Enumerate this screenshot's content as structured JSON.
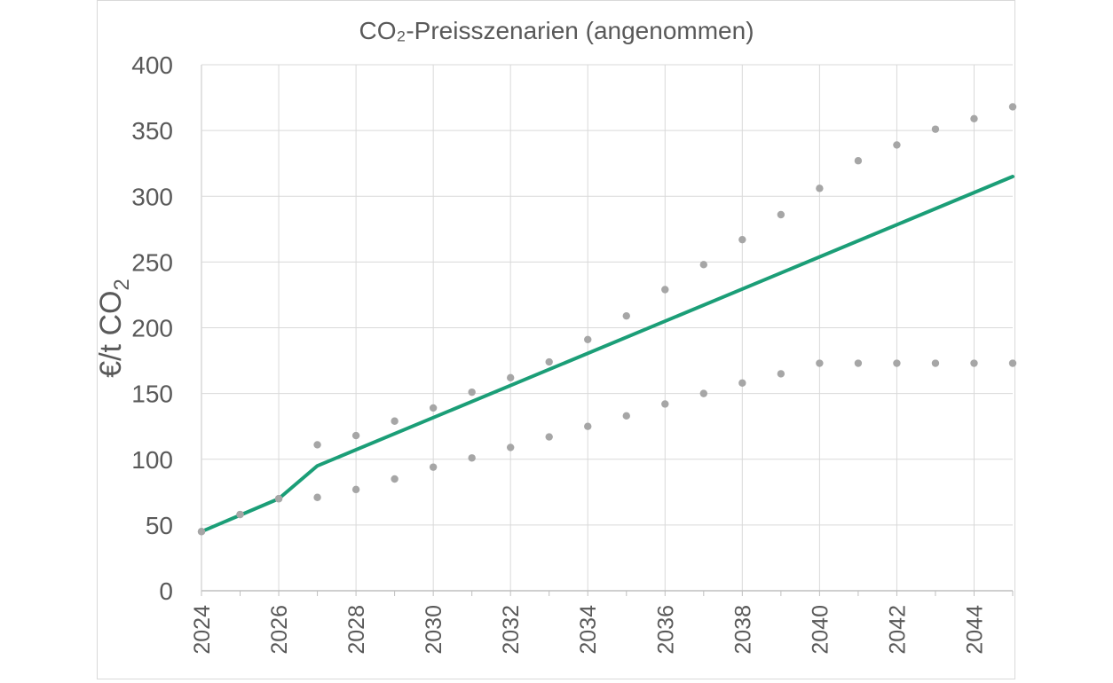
{
  "chart_data": {
    "type": "line",
    "title": "CO₂-Preisszenarien (angenommen)",
    "ylabel_main": "€/t CO",
    "ylabel_sub": "2",
    "xlabel": "",
    "ylim": [
      0,
      400
    ],
    "xlim": [
      2024,
      2045
    ],
    "y_ticks": [
      0,
      50,
      100,
      150,
      200,
      250,
      300,
      350,
      400
    ],
    "x_ticks": [
      2024,
      2026,
      2028,
      2030,
      2032,
      2034,
      2036,
      2038,
      2040,
      2042,
      2044
    ],
    "grid": true,
    "legend": "none",
    "series": [
      {
        "style": "line",
        "color": "#1b9e77",
        "x": [
          2024,
          2026,
          2027,
          2045
        ],
        "values": [
          45,
          70,
          95,
          315
        ]
      },
      {
        "style": "dots",
        "color": "#a6a6a6",
        "x": [
          2024,
          2025,
          2026,
          2027,
          2028,
          2029,
          2030,
          2031,
          2032,
          2033,
          2034,
          2035,
          2036,
          2037,
          2038,
          2039,
          2040,
          2041,
          2042,
          2043,
          2044,
          2045
        ],
        "values": [
          45,
          58,
          70,
          111,
          118,
          129,
          139,
          151,
          162,
          174,
          191,
          209,
          229,
          248,
          267,
          286,
          306,
          327,
          339,
          351,
          359,
          368
        ]
      },
      {
        "style": "dots",
        "color": "#a6a6a6",
        "x": [
          2024,
          2025,
          2026,
          2027,
          2028,
          2029,
          2030,
          2031,
          2032,
          2033,
          2034,
          2035,
          2036,
          2037,
          2038,
          2039,
          2040,
          2041,
          2042,
          2043,
          2044,
          2045
        ],
        "values": [
          45,
          58,
          70,
          71,
          77,
          85,
          94,
          101,
          109,
          117,
          125,
          133,
          142,
          150,
          158,
          165,
          173,
          173,
          173,
          173,
          173,
          173
        ]
      }
    ]
  }
}
